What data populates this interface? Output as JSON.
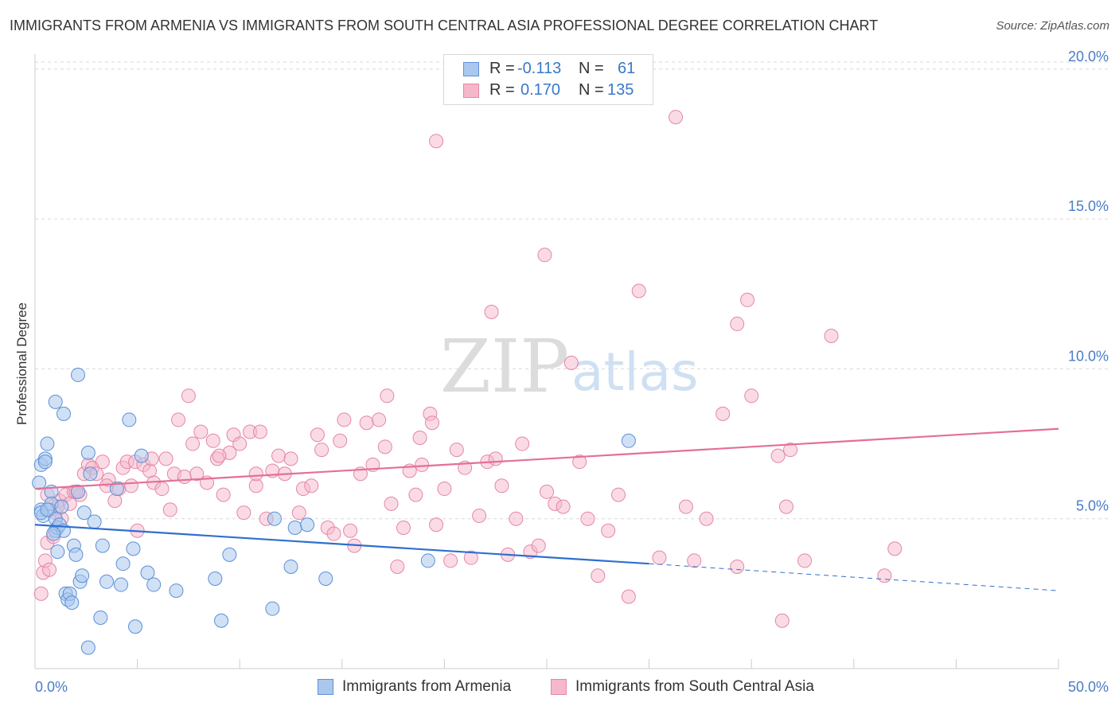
{
  "header": {
    "title": "IMMIGRANTS FROM ARMENIA VS IMMIGRANTS FROM SOUTH CENTRAL ASIA PROFESSIONAL DEGREE CORRELATION CHART",
    "source": "Source: ZipAtlas.com"
  },
  "watermark": {
    "zip": "ZIP",
    "atlas": "atlas"
  },
  "legend": {
    "r_label": "R =",
    "n_label": "N =",
    "series": [
      {
        "r": "-0.113",
        "n": "61"
      },
      {
        "r": "0.170",
        "n": "135"
      }
    ]
  },
  "bottom_legend": [
    {
      "label": "Immigrants from Armenia"
    },
    {
      "label": "Immigrants from South Central Asia"
    }
  ],
  "colors": {
    "armenia_fill": "#aac8ee",
    "armenia_stroke": "#5d8fd6",
    "armenia_line": "#2f6fce",
    "sca_fill": "#f5b8cb",
    "sca_stroke": "#e486a6",
    "sca_line": "#e46f97",
    "tick": "#4a7cc7",
    "grid": "#d9d9d9"
  },
  "chart_data": {
    "type": "scatter",
    "title": "IMMIGRANTS FROM ARMENIA VS IMMIGRANTS FROM SOUTH CENTRAL ASIA PROFESSIONAL DEGREE CORRELATION CHART",
    "ylabel": "Professional Degree",
    "xlabel": "",
    "xlim": [
      0,
      50
    ],
    "ylim": [
      0,
      20.5
    ],
    "x_tick_labels": [
      "0.0%",
      "50.0%"
    ],
    "y_ticks": [
      5,
      10,
      15,
      20
    ],
    "y_tick_labels": [
      "5.0%",
      "10.0%",
      "15.0%",
      "20.0%"
    ],
    "grid": "horizontal dashed",
    "legend_position": "top-center",
    "series": [
      {
        "name": "Immigrants from Armenia",
        "r": -0.113,
        "n": 61,
        "trend": {
          "x0": 0,
          "y0": 4.8,
          "x1": 30,
          "y1": 3.5,
          "dashed_to_x": 50,
          "dashed_to_y": 2.6
        },
        "points": [
          [
            0.2,
            6.2
          ],
          [
            0.3,
            5.3
          ],
          [
            0.4,
            5.1
          ],
          [
            0.3,
            6.8
          ],
          [
            0.5,
            7.0
          ],
          [
            0.5,
            6.9
          ],
          [
            0.6,
            7.5
          ],
          [
            0.7,
            5.3
          ],
          [
            0.8,
            5.9
          ],
          [
            0.8,
            5.5
          ],
          [
            1.0,
            5.0
          ],
          [
            1.0,
            4.6
          ],
          [
            1.1,
            4.7
          ],
          [
            1.1,
            3.9
          ],
          [
            1.2,
            4.8
          ],
          [
            1.3,
            5.4
          ],
          [
            1.4,
            4.6
          ],
          [
            1.5,
            2.5
          ],
          [
            1.6,
            2.3
          ],
          [
            1.7,
            2.5
          ],
          [
            1.8,
            2.2
          ],
          [
            1.9,
            4.1
          ],
          [
            2.0,
            3.8
          ],
          [
            2.1,
            5.9
          ],
          [
            2.2,
            2.9
          ],
          [
            2.3,
            3.1
          ],
          [
            2.4,
            5.2
          ],
          [
            2.6,
            0.7
          ],
          [
            2.6,
            7.2
          ],
          [
            2.7,
            6.5
          ],
          [
            2.9,
            4.9
          ],
          [
            3.3,
            4.1
          ],
          [
            3.2,
            1.7
          ],
          [
            3.5,
            2.9
          ],
          [
            4.0,
            6.0
          ],
          [
            4.2,
            2.8
          ],
          [
            4.3,
            3.5
          ],
          [
            4.6,
            8.3
          ],
          [
            4.8,
            4.0
          ],
          [
            4.9,
            1.4
          ],
          [
            5.2,
            7.1
          ],
          [
            5.5,
            3.2
          ],
          [
            5.8,
            2.8
          ],
          [
            6.9,
            2.6
          ],
          [
            8.8,
            3.0
          ],
          [
            9.1,
            1.6
          ],
          [
            9.5,
            3.8
          ],
          [
            11.6,
            2.0
          ],
          [
            11.7,
            5.0
          ],
          [
            12.7,
            4.7
          ],
          [
            13.3,
            4.8
          ],
          [
            12.5,
            3.4
          ],
          [
            14.2,
            3.0
          ],
          [
            19.2,
            3.6
          ],
          [
            29.0,
            7.6
          ],
          [
            1.0,
            8.9
          ],
          [
            1.4,
            8.5
          ],
          [
            2.1,
            9.8
          ],
          [
            0.3,
            5.2
          ],
          [
            0.6,
            5.3
          ],
          [
            0.9,
            4.5
          ]
        ]
      },
      {
        "name": "Immigrants from South Central Asia",
        "r": 0.17,
        "n": 135,
        "trend": {
          "x0": 0,
          "y0": 6.0,
          "x1": 50,
          "y1": 8.0
        },
        "points": [
          [
            0.3,
            2.5
          ],
          [
            0.4,
            3.2
          ],
          [
            0.5,
            3.6
          ],
          [
            0.6,
            4.2
          ],
          [
            0.7,
            3.3
          ],
          [
            0.9,
            4.4
          ],
          [
            1.0,
            5.2
          ],
          [
            1.2,
            5.6
          ],
          [
            1.3,
            5.0
          ],
          [
            1.5,
            5.8
          ],
          [
            1.7,
            5.5
          ],
          [
            1.9,
            5.9
          ],
          [
            2.2,
            5.8
          ],
          [
            2.4,
            6.5
          ],
          [
            2.6,
            6.8
          ],
          [
            2.8,
            6.7
          ],
          [
            3.0,
            6.5
          ],
          [
            3.3,
            6.9
          ],
          [
            3.6,
            6.3
          ],
          [
            3.9,
            5.6
          ],
          [
            4.1,
            6.0
          ],
          [
            4.3,
            6.7
          ],
          [
            4.5,
            6.9
          ],
          [
            4.7,
            6.1
          ],
          [
            4.9,
            6.9
          ],
          [
            5.0,
            4.6
          ],
          [
            5.3,
            6.8
          ],
          [
            5.6,
            6.6
          ],
          [
            5.8,
            6.2
          ],
          [
            6.2,
            6.0
          ],
          [
            6.4,
            7.0
          ],
          [
            6.6,
            5.3
          ],
          [
            6.8,
            6.5
          ],
          [
            7.0,
            8.3
          ],
          [
            7.3,
            6.4
          ],
          [
            7.5,
            9.1
          ],
          [
            7.7,
            7.5
          ],
          [
            7.9,
            6.5
          ],
          [
            8.1,
            7.9
          ],
          [
            8.4,
            6.2
          ],
          [
            8.7,
            7.6
          ],
          [
            8.9,
            7.0
          ],
          [
            9.2,
            5.8
          ],
          [
            9.5,
            7.2
          ],
          [
            9.7,
            7.8
          ],
          [
            10.0,
            7.5
          ],
          [
            10.2,
            5.2
          ],
          [
            10.5,
            7.9
          ],
          [
            10.8,
            6.1
          ],
          [
            11.0,
            7.9
          ],
          [
            11.3,
            5.0
          ],
          [
            11.6,
            6.6
          ],
          [
            11.9,
            7.1
          ],
          [
            12.2,
            6.5
          ],
          [
            12.5,
            7.0
          ],
          [
            12.9,
            5.2
          ],
          [
            13.1,
            6.0
          ],
          [
            13.5,
            6.1
          ],
          [
            13.8,
            7.8
          ],
          [
            14.0,
            7.3
          ],
          [
            14.3,
            4.7
          ],
          [
            14.6,
            4.5
          ],
          [
            14.9,
            7.6
          ],
          [
            15.1,
            8.3
          ],
          [
            15.4,
            4.6
          ],
          [
            15.6,
            4.1
          ],
          [
            15.9,
            6.5
          ],
          [
            16.2,
            8.2
          ],
          [
            16.5,
            6.8
          ],
          [
            16.8,
            8.3
          ],
          [
            17.1,
            7.4
          ],
          [
            17.4,
            5.5
          ],
          [
            17.7,
            3.4
          ],
          [
            18.0,
            4.7
          ],
          [
            18.3,
            6.6
          ],
          [
            18.6,
            5.8
          ],
          [
            18.9,
            6.8
          ],
          [
            19.3,
            8.5
          ],
          [
            19.6,
            4.8
          ],
          [
            20.0,
            6.0
          ],
          [
            20.3,
            3.6
          ],
          [
            20.6,
            7.3
          ],
          [
            21.0,
            6.7
          ],
          [
            21.3,
            3.7
          ],
          [
            21.7,
            5.1
          ],
          [
            22.1,
            6.9
          ],
          [
            22.5,
            7.0
          ],
          [
            22.8,
            6.1
          ],
          [
            23.1,
            3.8
          ],
          [
            23.5,
            5.0
          ],
          [
            23.8,
            7.5
          ],
          [
            24.2,
            3.9
          ],
          [
            24.6,
            4.1
          ],
          [
            25.0,
            5.9
          ],
          [
            25.4,
            5.5
          ],
          [
            25.8,
            5.4
          ],
          [
            26.2,
            10.2
          ],
          [
            26.6,
            6.9
          ],
          [
            27.0,
            5.0
          ],
          [
            27.5,
            3.1
          ],
          [
            28.0,
            4.6
          ],
          [
            28.5,
            5.8
          ],
          [
            29.0,
            2.4
          ],
          [
            29.5,
            12.6
          ],
          [
            30.5,
            3.7
          ],
          [
            31.3,
            18.4
          ],
          [
            31.8,
            5.4
          ],
          [
            32.2,
            3.6
          ],
          [
            32.8,
            5.0
          ],
          [
            33.6,
            8.5
          ],
          [
            34.3,
            3.4
          ],
          [
            34.8,
            12.3
          ],
          [
            34.3,
            11.5
          ],
          [
            35.0,
            9.1
          ],
          [
            36.3,
            7.1
          ],
          [
            36.5,
            1.6
          ],
          [
            36.7,
            5.4
          ],
          [
            36.9,
            7.3
          ],
          [
            37.6,
            3.6
          ],
          [
            38.9,
            11.1
          ],
          [
            41.5,
            3.1
          ],
          [
            42.0,
            4.0
          ],
          [
            0.6,
            5.8
          ],
          [
            1.1,
            5.4
          ],
          [
            2.0,
            5.9
          ],
          [
            3.5,
            6.1
          ],
          [
            5.7,
            7.0
          ],
          [
            9.0,
            7.1
          ],
          [
            10.8,
            6.5
          ],
          [
            17.2,
            9.1
          ],
          [
            18.8,
            7.7
          ],
          [
            19.4,
            8.2
          ],
          [
            19.6,
            17.6
          ],
          [
            22.3,
            11.9
          ],
          [
            24.9,
            13.8
          ]
        ]
      }
    ]
  }
}
